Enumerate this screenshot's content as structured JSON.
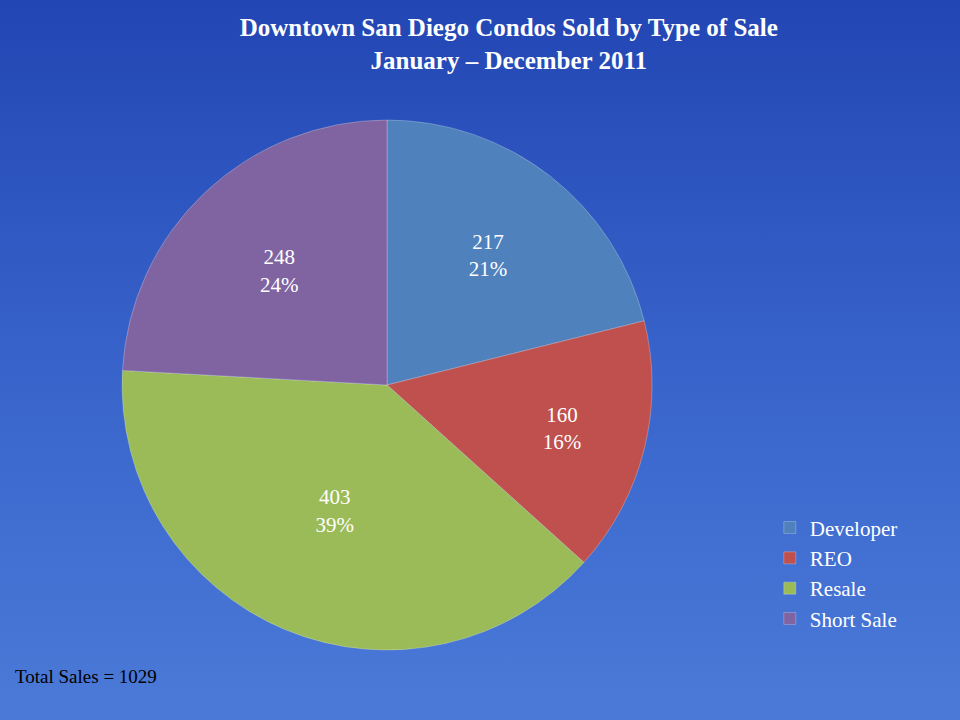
{
  "chart_data": {
    "type": "pie",
    "title": "Downtown San Diego Condos Sold by Type of Sale",
    "subtitle": "January – December 2011",
    "categories": [
      "Developer",
      "REO",
      "Resale",
      "Short Sale"
    ],
    "values": [
      217,
      160,
      403,
      248
    ],
    "value_labels": [
      "217\n21%",
      "160\n16%",
      "403\n39%",
      "248\n24%"
    ],
    "colors": [
      "#4f81bd",
      "#c0504d",
      "#9bbb59",
      "#8064a2"
    ],
    "data_labels": true,
    "legend": "bottom right",
    "annotations": [
      "Total Sales = 1029"
    ]
  }
}
